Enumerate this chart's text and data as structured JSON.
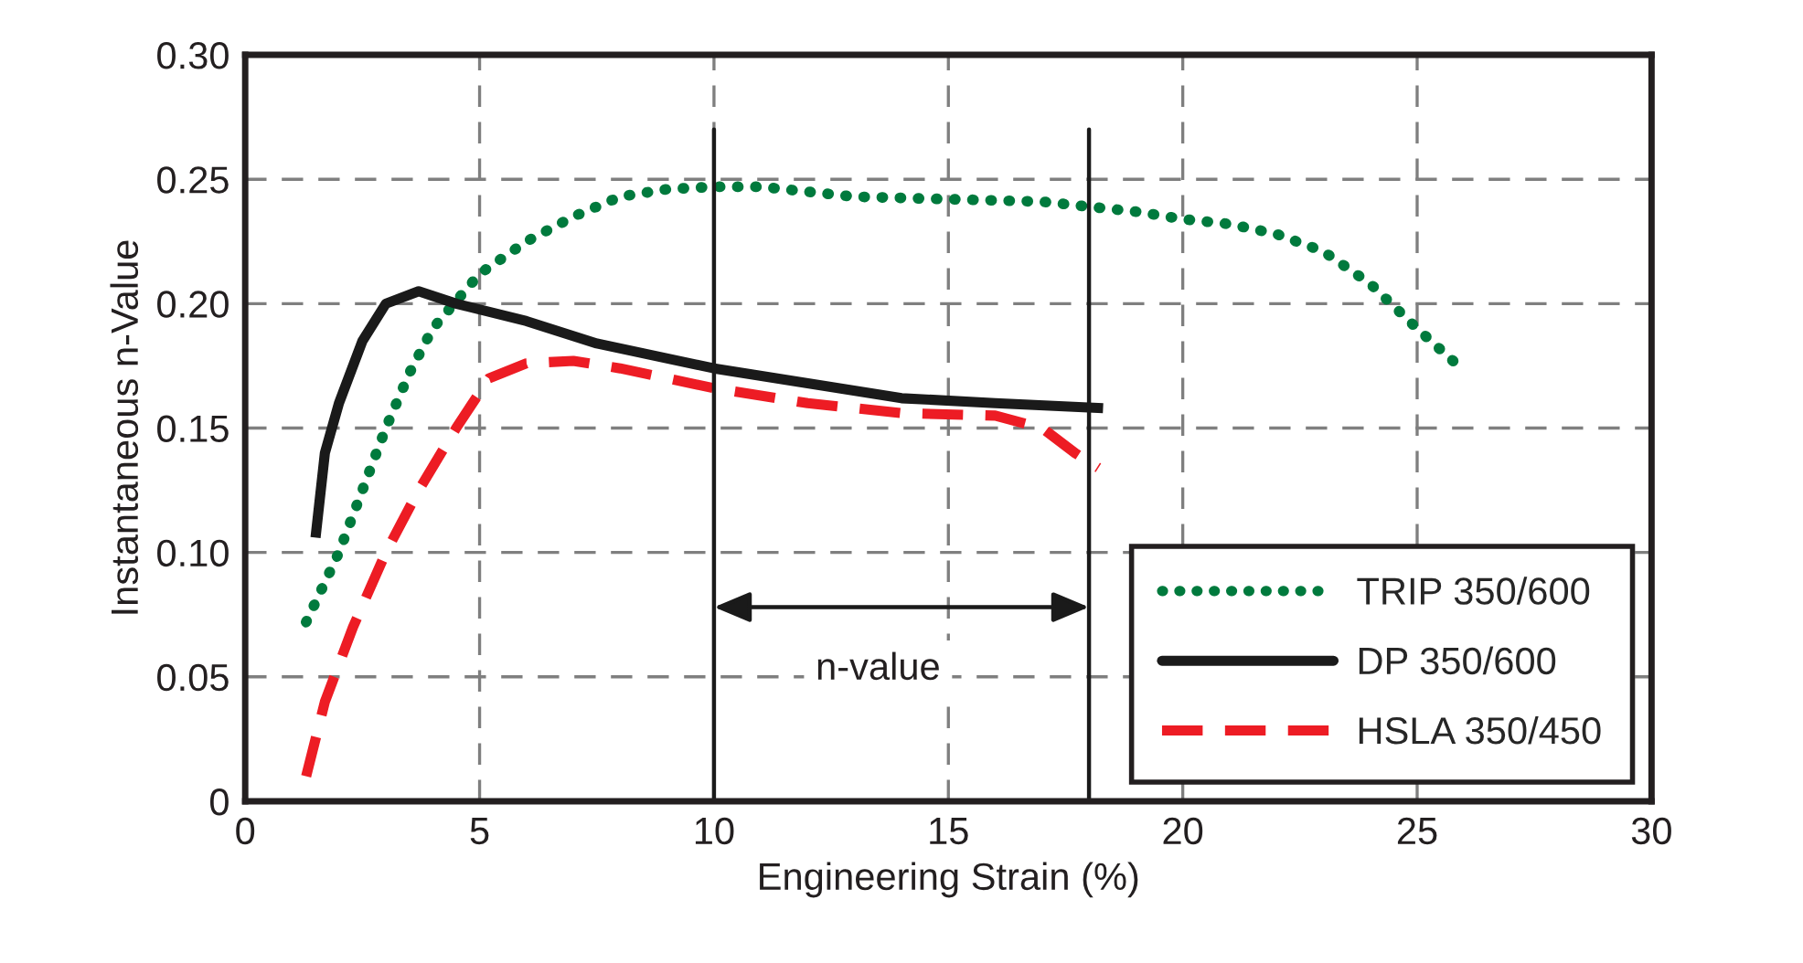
{
  "chart_data": {
    "type": "line",
    "xlabel": "Engineering Strain (%)",
    "ylabel": "Instantaneous n-Value",
    "xlim": [
      0,
      30
    ],
    "xticks": [
      0,
      5,
      10,
      15,
      20,
      25,
      30
    ],
    "ylim": [
      0,
      0.3
    ],
    "yticks": [
      {
        "value": 0,
        "label": "0"
      },
      {
        "value": 0.05,
        "label": "0.05"
      },
      {
        "value": 0.1,
        "label": "0.10"
      },
      {
        "value": 0.15,
        "label": "0.15"
      },
      {
        "value": 0.2,
        "label": "0.20"
      },
      {
        "value": 0.25,
        "label": "0.25"
      },
      {
        "value": 0.3,
        "label": "0.30"
      }
    ],
    "grid": true,
    "legend": "bottom right",
    "marker": "none",
    "series": [
      {
        "name": "TRIP 350/600",
        "color": "#007a3d",
        "line_style": "dotted",
        "x": [
          1.3,
          2,
          2.5,
          3,
          3.5,
          4,
          5,
          6,
          7,
          8,
          9,
          10,
          11,
          12,
          13,
          15,
          17,
          18,
          19,
          20,
          21,
          22,
          23,
          24,
          25,
          26
        ],
        "values": [
          0.072,
          0.1,
          0.125,
          0.15,
          0.172,
          0.19,
          0.212,
          0.225,
          0.235,
          0.243,
          0.246,
          0.247,
          0.247,
          0.245,
          0.243,
          0.242,
          0.241,
          0.239,
          0.237,
          0.234,
          0.232,
          0.228,
          0.221,
          0.208,
          0.19,
          0.173
        ]
      },
      {
        "name": "DP 350/600",
        "color": "#1a1a1a",
        "line_style": "solid",
        "x": [
          1.5,
          1.7,
          2,
          2.5,
          3,
          3.7,
          4.5,
          6,
          7.5,
          10,
          12,
          14,
          16,
          18.3
        ],
        "values": [
          0.106,
          0.14,
          0.16,
          0.185,
          0.2,
          0.205,
          0.2,
          0.193,
          0.184,
          0.174,
          0.168,
          0.162,
          0.16,
          0.158
        ]
      },
      {
        "name": "HSLA 350/450",
        "color": "#ed1c24",
        "line_style": "dashed",
        "x": [
          1.3,
          1.7,
          2.3,
          3,
          3.7,
          4.5,
          5.2,
          6,
          7,
          8,
          9,
          10,
          12,
          14,
          16,
          17,
          17.7,
          18.2
        ],
        "values": [
          0.01,
          0.04,
          0.07,
          0.1,
          0.125,
          0.15,
          0.17,
          0.176,
          0.177,
          0.174,
          0.17,
          0.166,
          0.16,
          0.156,
          0.155,
          0.15,
          0.14,
          0.134
        ]
      }
    ],
    "ref_lines": [
      {
        "axis": "x",
        "value": 10,
        "color": "#1a1a1a"
      },
      {
        "axis": "x",
        "value": 18,
        "color": "#1a1a1a"
      }
    ],
    "annotations": [
      "n-value"
    ]
  }
}
